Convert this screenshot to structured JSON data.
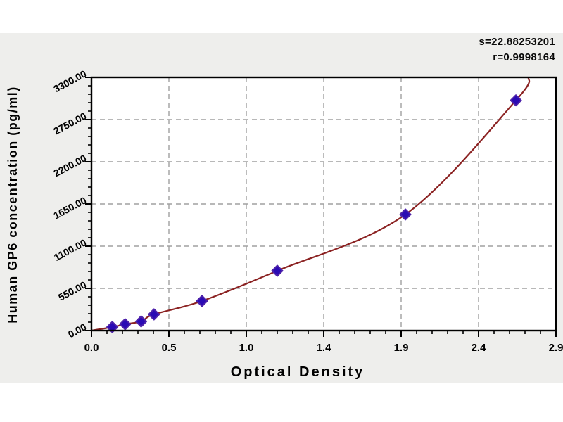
{
  "stats": {
    "s_line": "s=22.88253201",
    "r_line": "r=0.9998164"
  },
  "chart_data": {
    "type": "scatter",
    "title": "",
    "xlabel": "Optical Density",
    "ylabel": "Human GP6 concentration (pg/ml)",
    "x_tick_labels": [
      "0.0",
      "0.5",
      "1.0",
      "1.4",
      "1.9",
      "2.4",
      "2.9"
    ],
    "y_tick_labels": [
      "0.00",
      "550.00",
      "1100.00",
      "1650.00",
      "2200.00",
      "2750.00",
      "3300.00"
    ],
    "x_max": 2.9,
    "y_max": 3300,
    "xlim": [
      0,
      2.9
    ],
    "ylim": [
      0,
      3300
    ],
    "minor_ticks_per_interval": 4,
    "grid": "dashed major gridlines",
    "legend": "none",
    "points": [
      {
        "od": 0.13,
        "conc": 46
      },
      {
        "od": 0.21,
        "conc": 83
      },
      {
        "od": 0.31,
        "conc": 119
      },
      {
        "od": 0.39,
        "conc": 211
      },
      {
        "od": 0.69,
        "conc": 385
      },
      {
        "od": 1.16,
        "conc": 779
      },
      {
        "od": 1.96,
        "conc": 1513
      },
      {
        "od": 2.65,
        "conc": 3000
      }
    ],
    "curve": {
      "description": "fitted standard curve",
      "start": {
        "od": 0,
        "conc": 0
      },
      "end": {
        "od": 2.73,
        "conc": 3300
      }
    },
    "colors": {
      "panel_bg": "#eeeeec",
      "plot_bg": "#ffffff",
      "frame": "#000000",
      "grid": "#a0a0a0",
      "curve": "#8b2222",
      "point": "#2a0ab4",
      "point_stroke": "#4d22aa"
    }
  }
}
